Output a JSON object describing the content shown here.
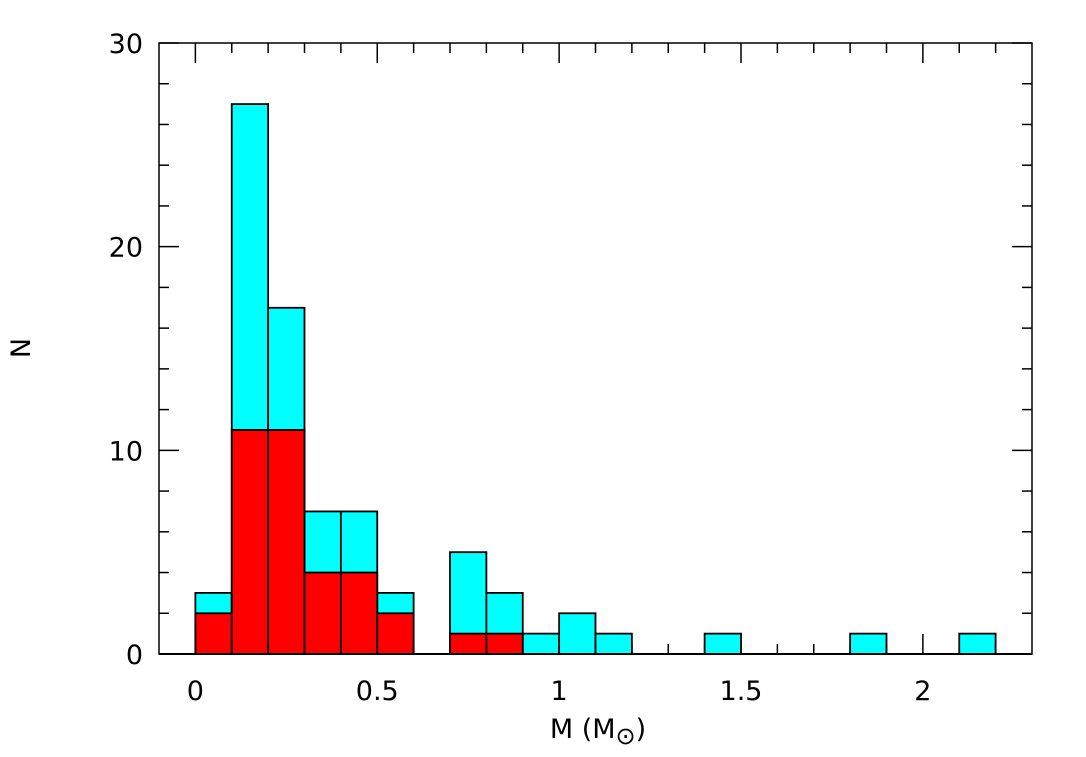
{
  "chart_data": {
    "type": "histogram",
    "title": "",
    "xlabel": "M (M⊙)",
    "xlabel_main": "M (M",
    "xlabel_sub": "⊙",
    "xlabel_close": ")",
    "ylabel": "N",
    "xlim": [
      -0.1,
      2.3
    ],
    "ylim": [
      0,
      30
    ],
    "xticks_major": [
      0,
      0.5,
      1,
      1.5,
      2
    ],
    "xtick_labels": [
      "0",
      "0.5",
      "1",
      "1.5",
      "2"
    ],
    "xticks_minor_step": 0.1,
    "yticks_major": [
      0,
      10,
      20,
      30
    ],
    "ytick_labels": [
      "0",
      "10",
      "20",
      "30"
    ],
    "yticks_minor_step": 2,
    "bin_width": 0.1,
    "bin_edges_start": [
      0.0,
      0.1,
      0.2,
      0.3,
      0.4,
      0.5,
      0.6,
      0.7,
      0.8,
      0.9,
      1.0,
      1.1,
      1.2,
      1.3,
      1.4,
      1.5,
      1.6,
      1.7,
      1.8,
      1.9,
      2.0,
      2.1
    ],
    "series": [
      {
        "color": "#00ffff",
        "values": [
          3,
          27,
          17,
          7,
          7,
          3,
          0,
          5,
          3,
          1,
          2,
          1,
          0,
          0,
          1,
          0,
          0,
          0,
          1,
          0,
          0,
          1
        ]
      },
      {
        "color": "#ff0000",
        "values": [
          2,
          11,
          11,
          4,
          4,
          2,
          0,
          1,
          1,
          0,
          0,
          0,
          0,
          0,
          0,
          0,
          0,
          0,
          0,
          0,
          0,
          0
        ]
      }
    ],
    "grid": false,
    "legend": "none"
  }
}
